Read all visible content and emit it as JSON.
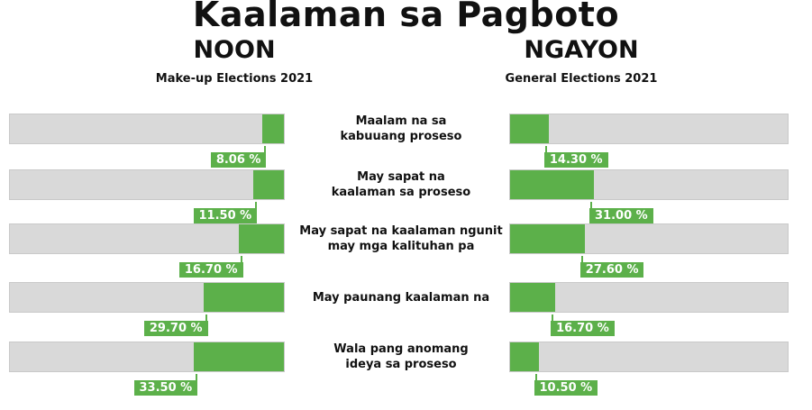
{
  "title": "Kaalaman sa Pagboto",
  "chart_data": [
    {
      "type": "bar",
      "title": "NOON",
      "subtitle": "Make-up Elections 2021",
      "categories": [
        "Maalam na sa kabuuang proseso",
        "May sapat na kaalaman sa proseso",
        "May sapat na kaalaman ngunit may mga kalituhan pa",
        "May paunang kaalaman na",
        "Wala pang anomang ideya sa proseso"
      ],
      "values": [
        8.06,
        11.5,
        16.7,
        29.7,
        33.5
      ],
      "labels": [
        "8.06 %",
        "11.50 %",
        "16.70 %",
        "29.70 %",
        "33.50 %"
      ],
      "orientation": "horizontal-right-to-left",
      "xlim": [
        0,
        100
      ],
      "color": "#5cb04a",
      "track_color": "#d9d9d9"
    },
    {
      "type": "bar",
      "title": "NGAYON",
      "subtitle": "General Elections 2021",
      "categories": [
        "Maalam na sa kabuuang proseso",
        "May sapat na kaalaman sa proseso",
        "May sapat na kaalaman ngunit may mga kalituhan pa",
        "May paunang kaalaman na",
        "Wala pang anomang ideya sa proseso"
      ],
      "values": [
        14.3,
        31.0,
        27.6,
        16.7,
        10.5
      ],
      "labels": [
        "14.30 %",
        "31.00 %",
        "27.60 %",
        "16.70 %",
        "10.50 %"
      ],
      "orientation": "horizontal-left-to-right",
      "xlim": [
        0,
        100
      ],
      "color": "#5cb04a",
      "track_color": "#d9d9d9"
    }
  ],
  "category_labels": [
    [
      "Maalam na sa",
      "kabuuang proseso"
    ],
    [
      "May sapat na",
      "kaalaman sa proseso"
    ],
    [
      "May sapat na kaalaman ngunit",
      "may mga kalituhan pa"
    ],
    [
      "May paunang kaalaman na"
    ],
    [
      "Wala pang anomang",
      "ideya sa proseso"
    ]
  ]
}
